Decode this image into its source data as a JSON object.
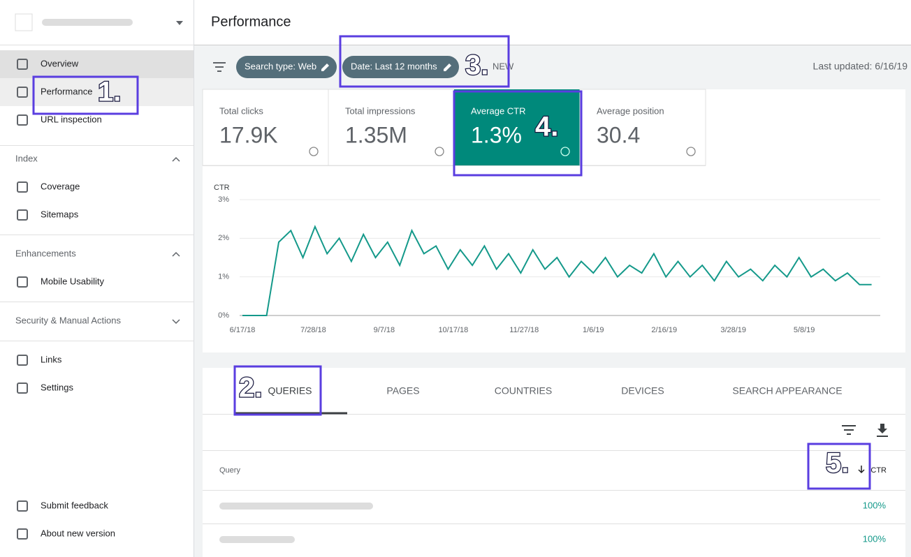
{
  "header": {
    "title": "Performance"
  },
  "sidebar": {
    "top": [
      "Overview",
      "Performance",
      "URL inspection"
    ],
    "index_title": "Index",
    "index": [
      "Coverage",
      "Sitemaps"
    ],
    "enhancements_title": "Enhancements",
    "enhancements": [
      "Mobile Usability"
    ],
    "security_title": "Security & Manual Actions",
    "bottom": [
      "Links",
      "Settings"
    ],
    "footer": [
      "Submit feedback",
      "About new version"
    ]
  },
  "toolbar": {
    "filters": [
      "Search type: Web",
      "Date: Last 12 months"
    ],
    "new": "NEW",
    "last_updated": "Last updated: 6/16/19"
  },
  "metrics": [
    {
      "label": "Total clicks",
      "value": "17.9K"
    },
    {
      "label": "Total impressions",
      "value": "1.35M"
    },
    {
      "label": "Average CTR",
      "value": "1.3%"
    },
    {
      "label": "Average position",
      "value": "30.4"
    }
  ],
  "chart_data": {
    "type": "line",
    "y_label": "CTR",
    "color": "#14998a",
    "x": [
      "6/17/18",
      "6/24/18",
      "7/1/18",
      "7/8/18",
      "7/15/18",
      "7/22/18",
      "7/29/18",
      "8/5/18",
      "8/12/18",
      "8/19/18",
      "8/26/18",
      "9/2/18",
      "9/9/18",
      "9/16/18",
      "9/23/18",
      "9/30/18",
      "10/7/18",
      "10/14/18",
      "10/21/18",
      "10/28/18",
      "11/4/18",
      "11/11/18",
      "11/18/18",
      "11/25/18",
      "12/2/18",
      "12/9/18",
      "12/16/18",
      "12/23/18",
      "12/30/18",
      "1/6/19",
      "1/13/19",
      "1/20/19",
      "1/27/19",
      "2/3/19",
      "2/10/19",
      "2/17/19",
      "2/24/19",
      "3/3/19",
      "3/10/19",
      "3/17/19",
      "3/24/19",
      "3/31/19",
      "4/7/19",
      "4/14/19",
      "4/21/19",
      "4/28/19",
      "5/5/19",
      "5/12/19",
      "5/19/19",
      "5/26/19",
      "6/2/19",
      "6/9/19",
      "6/16/19"
    ],
    "values": [
      0,
      0,
      0,
      1.9,
      2.2,
      1.5,
      2.3,
      1.6,
      2.0,
      1.4,
      2.1,
      1.5,
      1.9,
      1.3,
      2.2,
      1.6,
      1.8,
      1.2,
      1.7,
      1.3,
      1.8,
      1.2,
      1.6,
      1.1,
      1.7,
      1.2,
      1.5,
      1.0,
      1.4,
      1.1,
      1.5,
      1.0,
      1.3,
      1.1,
      1.6,
      1.0,
      1.4,
      1.0,
      1.3,
      0.9,
      1.4,
      1.0,
      1.2,
      0.9,
      1.3,
      1.0,
      1.5,
      1.0,
      1.2,
      0.9,
      1.1,
      0.8,
      0.8
    ],
    "xlim": [
      "6/17/18",
      "6/21/19"
    ],
    "xticks": [
      "6/17/18",
      "7/28/18",
      "9/7/18",
      "10/17/18",
      "11/27/18",
      "1/6/19",
      "2/16/19",
      "3/28/19",
      "5/8/19"
    ],
    "ylim": [
      0,
      3
    ],
    "yticks": [
      {
        "value": 0,
        "label": "0%"
      },
      {
        "value": 1,
        "label": "1%"
      },
      {
        "value": 2,
        "label": "2%"
      },
      {
        "value": 3,
        "label": "3%"
      }
    ],
    "grid": true
  },
  "tabs": [
    "QUERIES",
    "PAGES",
    "COUNTRIES",
    "DEVICES",
    "SEARCH APPEARANCE"
  ],
  "table": {
    "header": [
      "Query",
      "CTR"
    ],
    "ctr": [
      "100%",
      "100%"
    ]
  },
  "annotations": [
    "1.",
    "2.",
    "3.",
    "4.",
    "5."
  ]
}
